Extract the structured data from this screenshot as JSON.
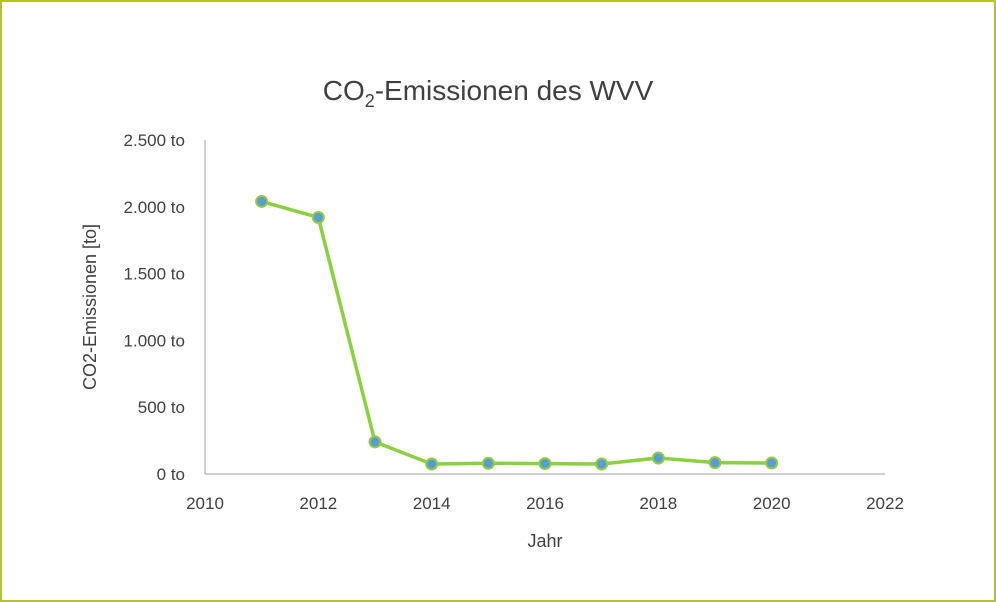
{
  "chart_data": {
    "type": "scatter",
    "title_main": "CO",
    "title_sub": "2",
    "title_rest": "-Emissionen des WVV",
    "xlabel": "Jahr",
    "ylabel": "CO2-Emissionen [to]",
    "xlim": [
      2010,
      2022
    ],
    "ylim": [
      0,
      2500
    ],
    "xticks": [
      2010,
      2012,
      2014,
      2016,
      2018,
      2020,
      2022
    ],
    "yticks": [
      0,
      500,
      1000,
      1500,
      2000,
      2500
    ],
    "ytick_labels": [
      "0 to",
      "500 to",
      "1.000 to",
      "1.500 to",
      "2.000 to",
      "2.500 to"
    ],
    "grid": false,
    "legend": "none",
    "series": [
      {
        "x": [
          2011,
          2012,
          2013,
          2014,
          2015,
          2016,
          2017,
          2018,
          2019,
          2020
        ],
        "y": [
          2040,
          1920,
          240,
          75,
          80,
          78,
          75,
          120,
          85,
          82
        ]
      }
    ],
    "colors": {
      "line": "#8ccf3f",
      "marker_fill": "#5b9bd5",
      "marker_stroke": "#8ccf3f",
      "axis": "#bfbfbf",
      "frame": "#b7c22b",
      "text": "#404040"
    }
  }
}
